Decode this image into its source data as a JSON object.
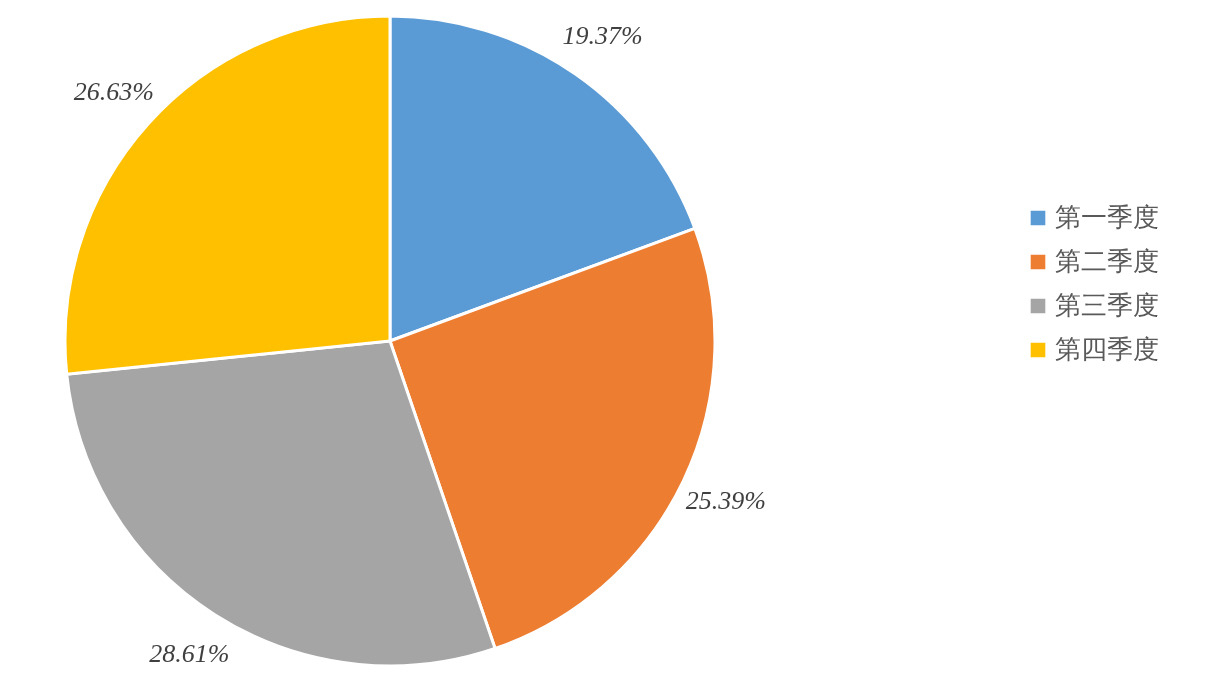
{
  "chart_data": {
    "type": "pie",
    "categories": [
      "第一季度",
      "第二季度",
      "第三季度",
      "第四季度"
    ],
    "values": [
      19.37,
      25.39,
      28.61,
      26.63
    ],
    "colors": [
      "#5b9bd5",
      "#ed7d31",
      "#a5a5a5",
      "#ffc000"
    ],
    "value_labels": [
      "19.37%",
      "25.39%",
      "28.61%",
      "26.63%"
    ],
    "legend": "right"
  }
}
